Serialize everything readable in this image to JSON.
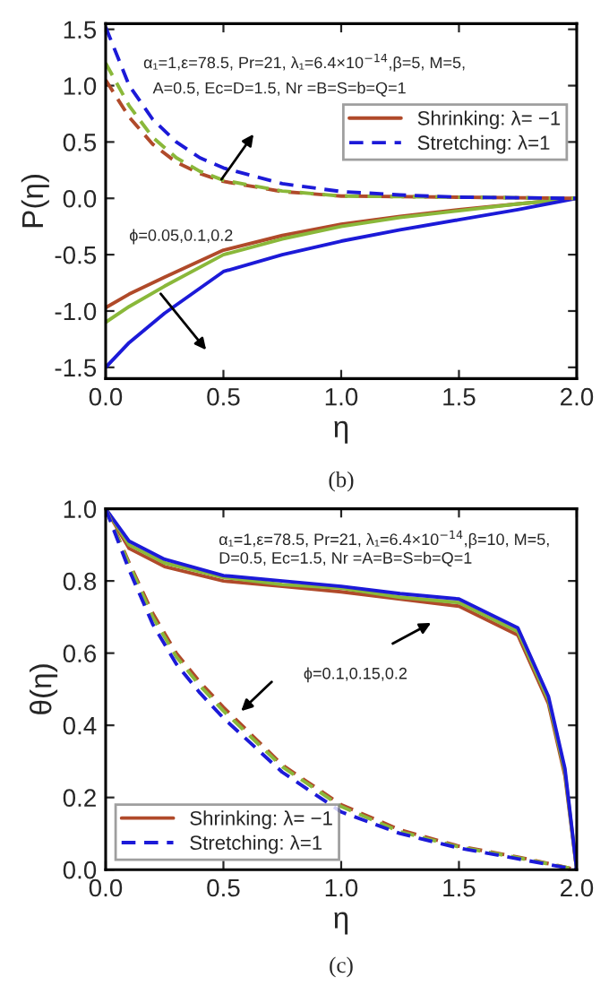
{
  "chart_data": [
    {
      "type": "line",
      "xlabel": "η",
      "ylabel": "P(η)",
      "xlim": [
        0,
        2
      ],
      "ylim": [
        -1.6,
        1.55
      ],
      "xticks": [
        {
          "value": 0,
          "label": "0.0"
        },
        {
          "value": 0.5,
          "label": "0.5"
        },
        {
          "value": 1,
          "label": "1.0"
        },
        {
          "value": 1.5,
          "label": "1.5"
        },
        {
          "value": 2,
          "label": "2.0"
        }
      ],
      "yticks": [
        {
          "value": -1.5,
          "label": "-1.5"
        },
        {
          "value": -1,
          "label": "-1.0"
        },
        {
          "value": -0.5,
          "label": "-0.5"
        },
        {
          "value": 0,
          "label": "0.0"
        },
        {
          "value": 0.5,
          "label": "0.5"
        },
        {
          "value": 1,
          "label": "1.0"
        },
        {
          "value": 1.5,
          "label": "1.5"
        }
      ],
      "grid": false,
      "legend": "top right",
      "marker": "none",
      "annotations": [
        "α₁=1,ε=78.5, Pr=21, λ₁=6.4×10$^{−14}$,β=5, M=5,",
        "A=0.5, Ec=D=1.5, Nr =B=S=b=Q=1",
        "ϕ=0.05,0.1,0.2",
        "(b)"
      ],
      "series": [
        {
          "name": "Shrinking: λ= −1",
          "color": "#b04a2a",
          "line_style": "solid",
          "x": [
            0,
            0.1,
            0.25,
            0.5,
            0.75,
            1.0,
            1.25,
            1.5,
            1.75,
            2.0
          ],
          "values": [
            -0.97,
            -0.85,
            -0.7,
            -0.46,
            -0.33,
            -0.23,
            -0.16,
            -0.1,
            -0.05,
            0
          ]
        },
        {
          "color": "#8ab83a",
          "line_style": "solid",
          "x": [
            0,
            0.1,
            0.25,
            0.5,
            0.75,
            1.0,
            1.25,
            1.5,
            1.75,
            2.0
          ],
          "values": [
            -1.1,
            -0.96,
            -0.78,
            -0.5,
            -0.36,
            -0.25,
            -0.17,
            -0.11,
            -0.05,
            0
          ]
        },
        {
          "color": "#1c1ad8",
          "line_style": "solid",
          "x": [
            0,
            0.1,
            0.25,
            0.5,
            0.75,
            1.0,
            1.25,
            1.5,
            1.75,
            2.0
          ],
          "values": [
            -1.5,
            -1.28,
            -1.02,
            -0.65,
            -0.5,
            -0.38,
            -0.28,
            -0.19,
            -0.1,
            0
          ]
        },
        {
          "color": "#b04a2a",
          "line_style": "dashed",
          "x": [
            0,
            0.1,
            0.2,
            0.3,
            0.4,
            0.5,
            0.75,
            1.0,
            1.5,
            2.0
          ],
          "values": [
            1.05,
            0.72,
            0.48,
            0.32,
            0.22,
            0.15,
            0.06,
            0.02,
            0.01,
            0
          ]
        },
        {
          "color": "#8ab83a",
          "line_style": "dashed",
          "x": [
            0,
            0.1,
            0.2,
            0.3,
            0.4,
            0.5,
            0.75,
            1.0,
            1.5,
            2.0
          ],
          "values": [
            1.2,
            0.82,
            0.54,
            0.36,
            0.24,
            0.16,
            0.065,
            0.02,
            0.01,
            0
          ]
        },
        {
          "name": "Stretching: λ=1",
          "color": "#1c1ad8",
          "line_style": "dashed",
          "x": [
            0,
            0.1,
            0.2,
            0.3,
            0.4,
            0.5,
            0.75,
            1.0,
            1.25,
            1.5,
            2.0
          ],
          "values": [
            1.52,
            1.0,
            0.7,
            0.5,
            0.36,
            0.27,
            0.13,
            0.06,
            0.03,
            0.01,
            0
          ]
        }
      ]
    },
    {
      "type": "line",
      "xlabel": "η",
      "ylabel": "θ(η)",
      "xlim": [
        0,
        2
      ],
      "ylim": [
        0,
        1
      ],
      "xticks": [
        {
          "value": 0,
          "label": "0.0"
        },
        {
          "value": 0.5,
          "label": "0.5"
        },
        {
          "value": 1,
          "label": "1.0"
        },
        {
          "value": 1.5,
          "label": "1.5"
        },
        {
          "value": 2,
          "label": "2.0"
        }
      ],
      "yticks": [
        {
          "value": 0,
          "label": "0.0"
        },
        {
          "value": 0.2,
          "label": "0.2"
        },
        {
          "value": 0.4,
          "label": "0.4"
        },
        {
          "value": 0.6,
          "label": "0.6"
        },
        {
          "value": 0.8,
          "label": "0.8"
        },
        {
          "value": 1,
          "label": "1.0"
        }
      ],
      "grid": false,
      "legend": "bottom left",
      "marker": "none",
      "annotations": [
        "α₁=1,ε=78.5, Pr=21, λ₁=6.4×10$^{−14}$,β=10, M=5,",
        "D=0.5, Ec=1.5, Nr =A=B=S=b=Q=1",
        "ϕ=0.1,0.15,0.2",
        "(c)"
      ],
      "series": [
        {
          "name": "Shrinking: λ= −1",
          "color": "#b04a2a",
          "line_style": "solid",
          "x": [
            0,
            0.1,
            0.25,
            0.5,
            0.75,
            1.0,
            1.25,
            1.5,
            1.75,
            1.88,
            1.95,
            2.0
          ],
          "values": [
            1,
            0.89,
            0.84,
            0.8,
            0.785,
            0.77,
            0.75,
            0.73,
            0.65,
            0.46,
            0.26,
            0
          ]
        },
        {
          "color": "#8ab83a",
          "line_style": "solid",
          "x": [
            0,
            0.1,
            0.25,
            0.5,
            0.75,
            1.0,
            1.25,
            1.5,
            1.75,
            1.88,
            1.95,
            2.0
          ],
          "values": [
            1,
            0.9,
            0.85,
            0.81,
            0.79,
            0.78,
            0.755,
            0.74,
            0.66,
            0.47,
            0.27,
            0
          ]
        },
        {
          "color": "#1c1ad8",
          "line_style": "solid",
          "x": [
            0,
            0.1,
            0.25,
            0.5,
            0.75,
            1.0,
            1.25,
            1.5,
            1.75,
            1.88,
            1.95,
            2.0
          ],
          "values": [
            1,
            0.91,
            0.86,
            0.815,
            0.8,
            0.785,
            0.765,
            0.75,
            0.67,
            0.48,
            0.28,
            0
          ]
        },
        {
          "color": "#b04a2a",
          "line_style": "dashed",
          "x": [
            0,
            0.1,
            0.2,
            0.3,
            0.4,
            0.5,
            0.75,
            1.0,
            1.25,
            1.5,
            1.75,
            2.0
          ],
          "values": [
            1,
            0.85,
            0.71,
            0.6,
            0.52,
            0.45,
            0.29,
            0.18,
            0.11,
            0.065,
            0.035,
            0
          ]
        },
        {
          "color": "#8ab83a",
          "line_style": "dashed",
          "x": [
            0,
            0.1,
            0.2,
            0.3,
            0.4,
            0.5,
            0.75,
            1.0,
            1.25,
            1.5,
            1.75,
            2.0
          ],
          "values": [
            1,
            0.845,
            0.7,
            0.59,
            0.51,
            0.44,
            0.285,
            0.175,
            0.105,
            0.063,
            0.033,
            0
          ]
        },
        {
          "name": "Stretching: λ=1",
          "color": "#1c1ad8",
          "line_style": "dashed",
          "x": [
            0,
            0.1,
            0.2,
            0.3,
            0.4,
            0.5,
            0.75,
            1.0,
            1.25,
            1.5,
            1.75,
            2.0
          ],
          "values": [
            1,
            0.83,
            0.68,
            0.57,
            0.49,
            0.42,
            0.27,
            0.16,
            0.1,
            0.06,
            0.03,
            0
          ]
        }
      ]
    }
  ]
}
